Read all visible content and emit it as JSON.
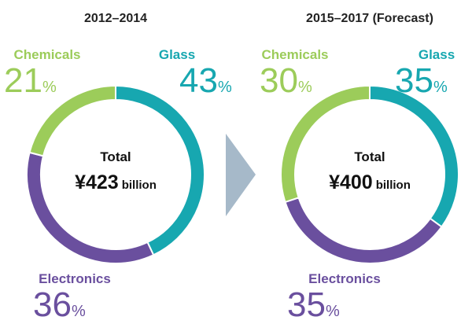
{
  "chart_data": [
    {
      "type": "pie",
      "title": "2012–2014",
      "categories": [
        "Glass",
        "Electronics",
        "Chemicals"
      ],
      "values": [
        43,
        36,
        21
      ],
      "value_labels": [
        "43%",
        "36%",
        "21%"
      ],
      "colors": [
        "#17a7b0",
        "#6a4f9e",
        "#9ccc5a"
      ],
      "center_label": "Total",
      "center_value": "¥423",
      "center_unit": "billion"
    },
    {
      "type": "pie",
      "title": "2015–2017 (Forecast)",
      "categories": [
        "Glass",
        "Electronics",
        "Chemicals"
      ],
      "values": [
        35,
        35,
        30
      ],
      "value_labels": [
        "35%",
        "35%",
        "30%"
      ],
      "colors": [
        "#17a7b0",
        "#6a4f9e",
        "#9ccc5a"
      ],
      "center_label": "Total",
      "center_value": "¥400",
      "center_unit": "billion"
    }
  ]
}
